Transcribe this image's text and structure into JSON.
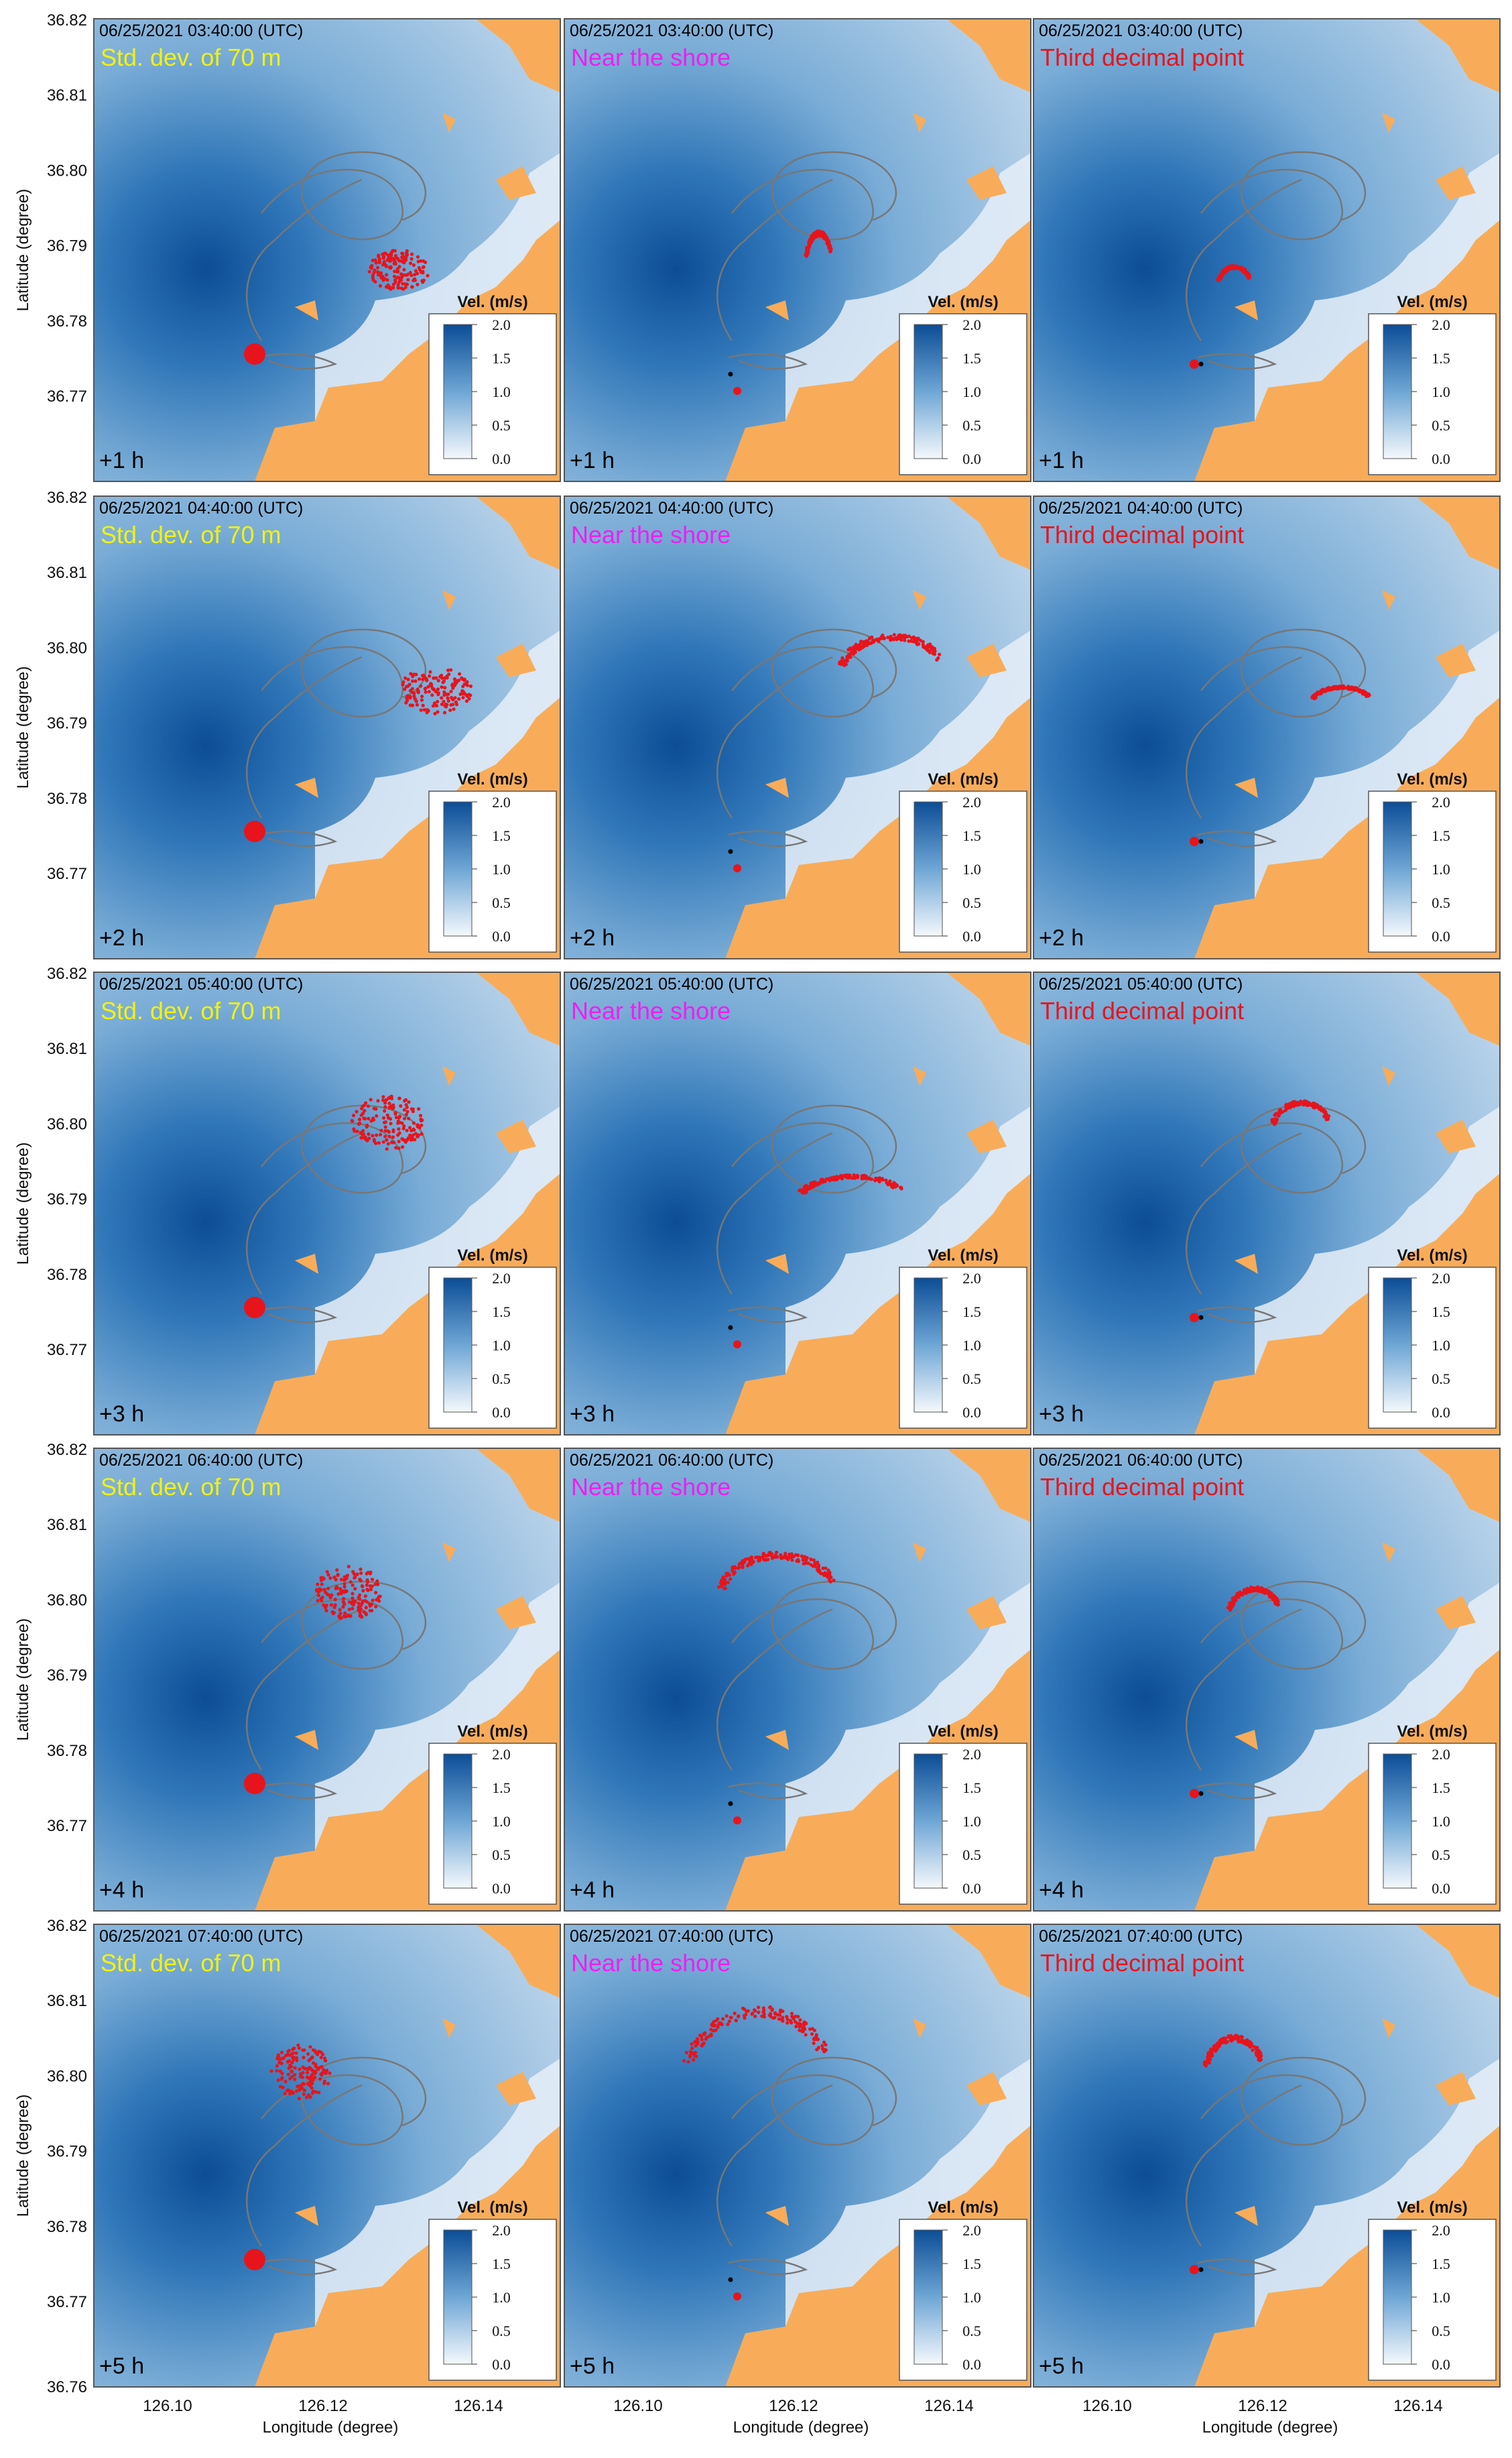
{
  "figure": {
    "y_axis_label": "Latitude (degree)",
    "x_axis_label": "Longitude (degree)",
    "y_ticks": [
      "36.82",
      "36.81",
      "36.80",
      "36.79",
      "36.78",
      "36.77"
    ],
    "y_bottom_tick": "36.76",
    "x_ticks": [
      "126.10",
      "126.12",
      "126.14"
    ],
    "colorbar": {
      "title": "Vel. (m/s)",
      "ticks": [
        "2.0",
        "1.5",
        "1.0",
        "0.5",
        "0.0"
      ],
      "range": [
        0.0,
        2.0
      ],
      "color_low": "#f4f8fc",
      "color_high": "#0c4d96"
    },
    "colors": {
      "land": "#f8ac59",
      "particles": "#e8141c",
      "track": "#777777",
      "label_std": "#f2f20e",
      "label_shore": "#f01ef0",
      "label_decimal": "#e8141c"
    },
    "columns": [
      {
        "label": "Std. dev. of 70 m",
        "key": "std"
      },
      {
        "label": "Near the shore",
        "key": "shore"
      },
      {
        "label": "Third decimal point",
        "key": "decimal"
      }
    ],
    "rows": [
      {
        "timestamp": "06/25/2021 03:40:00 (UTC)",
        "lead": "+1 h"
      },
      {
        "timestamp": "06/25/2021 04:40:00 (UTC)",
        "lead": "+2 h"
      },
      {
        "timestamp": "06/25/2021 05:40:00 (UTC)",
        "lead": "+3 h"
      },
      {
        "timestamp": "06/25/2021 06:40:00 (UTC)",
        "lead": "+4 h"
      },
      {
        "timestamp": "06/25/2021 07:40:00 (UTC)",
        "lead": "+5 h"
      }
    ]
  }
}
